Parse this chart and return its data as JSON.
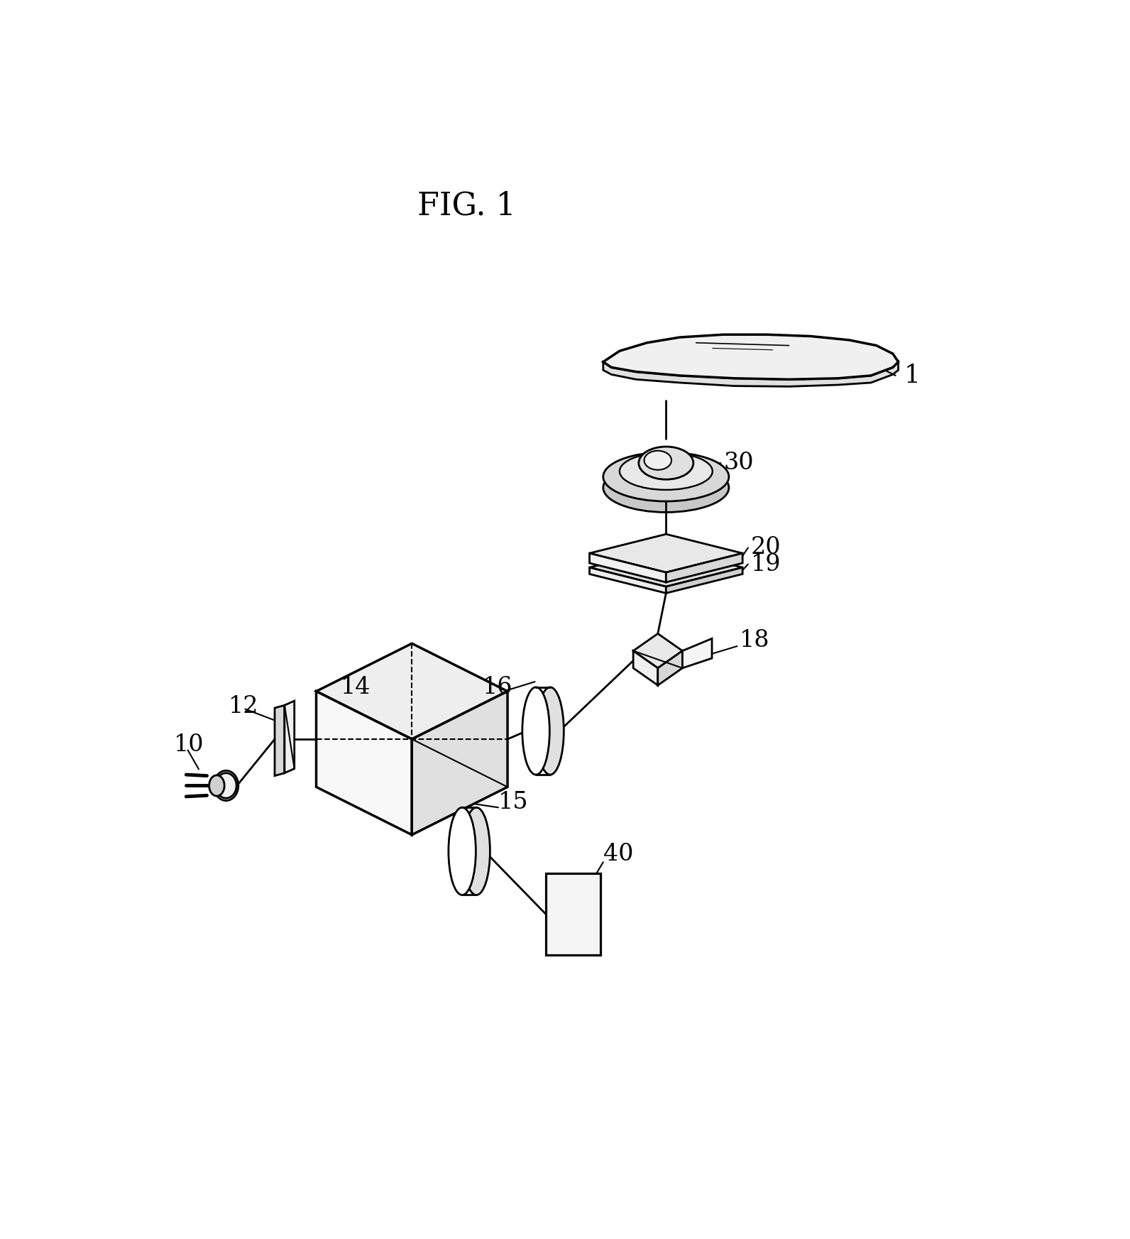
{
  "title": "FIG. 1",
  "bg_color": "#ffffff",
  "line_color": "#000000",
  "lw": 2.0,
  "figsize": [
    15.92,
    17.45
  ],
  "dpi": 100
}
